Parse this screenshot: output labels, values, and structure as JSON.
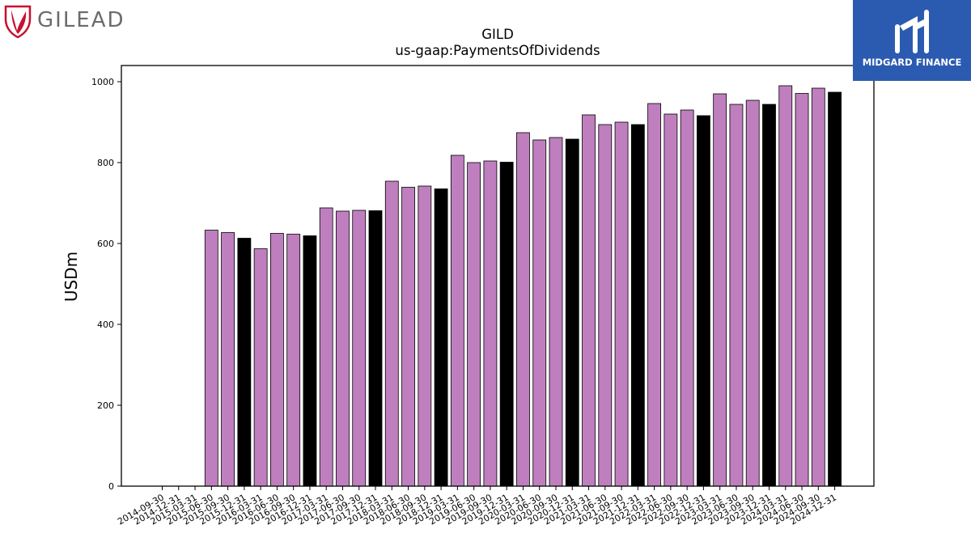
{
  "branding": {
    "left_logo_text": "GILEAD",
    "right_logo_text": "MIDGARD FINANCE"
  },
  "colors": {
    "quarter_bar": "#bf7fbf",
    "year_end_bar": "#000000",
    "brand_red": "#c8102e",
    "midgard_blue": "#2b5bb0"
  },
  "chart_data": {
    "type": "bar",
    "title": "GILD",
    "subtitle": "us-gaap:PaymentsOfDividends",
    "xlabel": "",
    "ylabel": "USDm",
    "ylim": [
      0,
      1040
    ],
    "yticks": [
      0,
      200,
      400,
      600,
      800,
      1000
    ],
    "grid": false,
    "categories": [
      "2014-09-30",
      "2014-12-31",
      "2015-03-31",
      "2015-06-30",
      "2015-09-30",
      "2015-12-31",
      "2016-03-31",
      "2016-06-30",
      "2016-09-30",
      "2016-12-31",
      "2017-03-31",
      "2017-06-30",
      "2017-09-30",
      "2017-12-31",
      "2018-03-31",
      "2018-06-30",
      "2018-09-30",
      "2018-12-31",
      "2019-03-31",
      "2019-06-30",
      "2019-09-30",
      "2019-12-31",
      "2020-03-31",
      "2020-06-30",
      "2020-09-30",
      "2020-12-31",
      "2021-03-31",
      "2021-06-30",
      "2021-09-30",
      "2021-12-31",
      "2022-03-31",
      "2022-06-30",
      "2022-09-30",
      "2022-12-31",
      "2023-03-31",
      "2023-06-30",
      "2023-09-30",
      "2023-12-31",
      "2024-03-31",
      "2024-06-30",
      "2024-09-30",
      "2024-12-31"
    ],
    "values": [
      null,
      null,
      null,
      633,
      627,
      613,
      587,
      625,
      623,
      619,
      688,
      680,
      682,
      681,
      754,
      739,
      742,
      735,
      818,
      800,
      804,
      801,
      874,
      856,
      862,
      858,
      918,
      894,
      900,
      894,
      946,
      920,
      930,
      916,
      970,
      944,
      954,
      944,
      990,
      971,
      984,
      974
    ],
    "year_end_highlight": [
      "2015-12-31",
      "2016-12-31",
      "2017-12-31",
      "2018-12-31",
      "2019-12-31",
      "2020-12-31",
      "2021-12-31",
      "2022-12-31",
      "2023-12-31",
      "2024-12-31"
    ]
  }
}
